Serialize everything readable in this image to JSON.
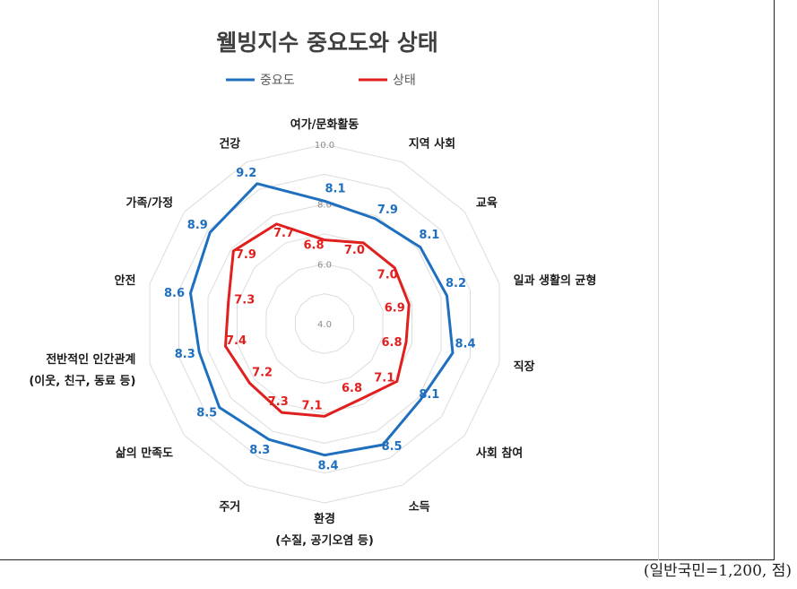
{
  "chart_data": {
    "type": "radar",
    "title": "웰빙지수 중요도와 상태",
    "categories": [
      "여가/문화활동",
      "지역 사회",
      "교육",
      "일과 생활의 균형",
      "직장",
      "사회 참여",
      "소득",
      "환경",
      "주거",
      "삶의 만족도",
      "전반적인 인간관계",
      "안전",
      "가족/가정",
      "건강"
    ],
    "category_sublabels": {
      "7": "(수질, 공기오염 등)",
      "10": "(이웃, 친구, 동료 등)"
    },
    "series": [
      {
        "name": "중요도",
        "color": "#1f6fbf",
        "values": [
          8.1,
          7.9,
          8.1,
          8.2,
          8.4,
          8.1,
          8.5,
          8.4,
          8.3,
          8.5,
          8.3,
          8.6,
          8.9,
          9.2
        ]
      },
      {
        "name": "상태",
        "color": "#e0201e",
        "values": [
          6.8,
          7.0,
          7.0,
          6.9,
          6.8,
          7.1,
          6.8,
          7.1,
          7.3,
          7.2,
          7.4,
          7.3,
          7.9,
          7.7
        ]
      }
    ],
    "axis_ticks": [
      "4.0",
      "6.0",
      "8.0",
      "10.0"
    ],
    "rlim": [
      4,
      10
    ],
    "grid": true,
    "legend_position": "top"
  },
  "caption": "(일반국민=1,200,  점)"
}
